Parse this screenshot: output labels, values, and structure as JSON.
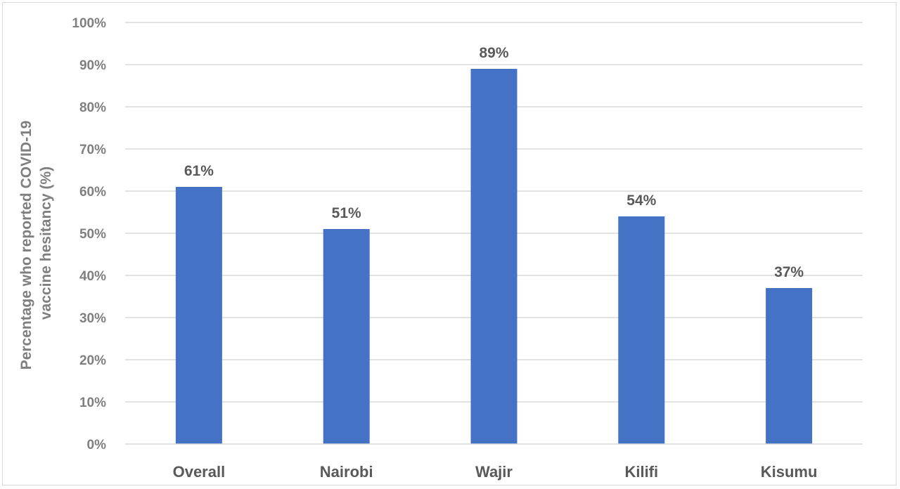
{
  "chart_data": {
    "type": "bar",
    "categories": [
      "Overall",
      "Nairobi",
      "Wajir",
      "Kilifi",
      "Kisumu"
    ],
    "values": [
      61,
      51,
      89,
      54,
      37
    ],
    "data_labels": [
      "61%",
      "51%",
      "89%",
      "54%",
      "37%"
    ],
    "title": "",
    "xlabel": "",
    "ylabel_lines": [
      "Percentage who reported COVID-19",
      "vaccine hesitancy (%)"
    ],
    "ylim": [
      0,
      100
    ],
    "yticks": [
      0,
      10,
      20,
      30,
      40,
      50,
      60,
      70,
      80,
      90,
      100
    ],
    "ytick_labels": [
      "0%",
      "10%",
      "20%",
      "30%",
      "40%",
      "50%",
      "60%",
      "70%",
      "80%",
      "90%",
      "100%"
    ],
    "grid": true,
    "bar_color": "#4472c4",
    "grid_color": "#d9d9d9"
  }
}
